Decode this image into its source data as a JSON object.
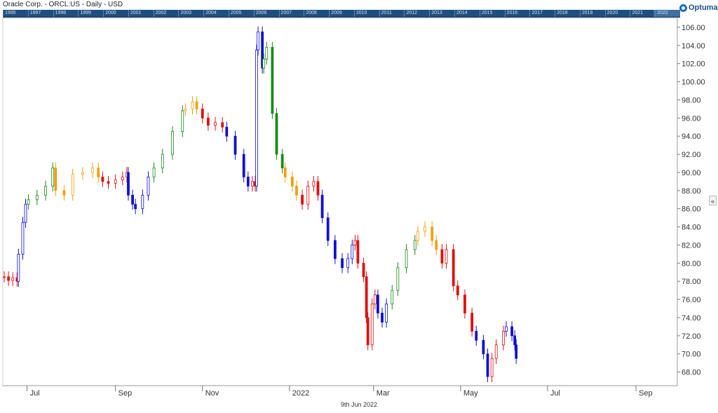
{
  "header": {
    "title": "Oracle Corp. - ORCL:US - Daily - USD",
    "logo_text": "Optuma",
    "overview_years": [
      "1995",
      "1997",
      "1998",
      "1999",
      "2000",
      "2001",
      "2002",
      "2003",
      "2004",
      "2005",
      "2006",
      "2007",
      "2008",
      "2009",
      "2010",
      "2011",
      "2012",
      "2013",
      "2014",
      "2015",
      "2016",
      "2017",
      "2018",
      "2019",
      "2020",
      "2021",
      "2022"
    ]
  },
  "footer": {
    "date_label": "9th Jun 2022"
  },
  "controls": {
    "collapse_label": "«"
  },
  "colors": {
    "up_trend": "#1a8a1a",
    "down_trend": "#e01010",
    "consolidation_up": "#f0a010",
    "consolidation_down": "#1010d0",
    "strip": "#1f4f7e",
    "grid": "#e6e6e6"
  },
  "chart_data": {
    "type": "candlestick",
    "title": "Oracle Corp. - ORCL:US - Daily - USD",
    "xlabel": "",
    "ylabel": "",
    "y_ticks": [
      "68.00",
      "70.00",
      "72.00",
      "74.00",
      "76.00",
      "78.00",
      "80.00",
      "82.00",
      "84.00",
      "86.00",
      "88.00",
      "90.00",
      "92.00",
      "94.00",
      "96.00",
      "98.00",
      "100.00",
      "102.00",
      "104.00",
      "106.00"
    ],
    "ylim": [
      66.5,
      107
    ],
    "x_month_labels": [
      {
        "label": "Jul",
        "date": "2021-07-01"
      },
      {
        "label": "Sep",
        "date": "2021-09-01"
      },
      {
        "label": "Nov",
        "date": "2021-11-01"
      },
      {
        "label": "2022",
        "date": "2022-01-01"
      },
      {
        "label": "Mar",
        "date": "2022-03-01"
      },
      {
        "label": "May",
        "date": "2022-05-01"
      },
      {
        "label": "Jul",
        "date": "2022-07-01"
      },
      {
        "label": "Sep",
        "date": "2022-09-01"
      }
    ],
    "xlim": [
      "2021-06-14",
      "2022-09-30"
    ],
    "series": [
      {
        "color": "red",
        "points": [
          {
            "date": "2021-06-15",
            "close": 78.5
          },
          {
            "date": "2021-06-18",
            "close": 78.1
          },
          {
            "date": "2021-06-21",
            "close": 78.4
          },
          {
            "date": "2021-06-24",
            "close": 78.0
          }
        ]
      },
      {
        "color": "blue",
        "points": [
          {
            "date": "2021-06-25",
            "close": 81.0
          },
          {
            "date": "2021-06-28",
            "close": 84.5
          },
          {
            "date": "2021-06-30",
            "close": 86.5
          }
        ]
      },
      {
        "color": "green",
        "points": [
          {
            "date": "2021-07-02",
            "close": 87.0
          },
          {
            "date": "2021-07-08",
            "close": 87.5
          },
          {
            "date": "2021-07-14",
            "close": 88.5
          },
          {
            "date": "2021-07-19",
            "close": 90.5
          }
        ]
      },
      {
        "color": "orange",
        "points": [
          {
            "date": "2021-07-21",
            "close": 88.0
          },
          {
            "date": "2021-07-27",
            "close": 87.5
          },
          {
            "date": "2021-08-02",
            "close": 89.8
          },
          {
            "date": "2021-08-09",
            "close": 90.0
          },
          {
            "date": "2021-08-16",
            "close": 90.5
          },
          {
            "date": "2021-08-20",
            "close": 89.5
          }
        ]
      },
      {
        "color": "red",
        "points": [
          {
            "date": "2021-08-23",
            "close": 89.0
          },
          {
            "date": "2021-08-27",
            "close": 88.8
          },
          {
            "date": "2021-09-01",
            "close": 89.2
          },
          {
            "date": "2021-09-06",
            "close": 89.5
          },
          {
            "date": "2021-09-09",
            "close": 90.0
          }
        ]
      },
      {
        "color": "blue",
        "points": [
          {
            "date": "2021-09-10",
            "close": 87.5
          },
          {
            "date": "2021-09-13",
            "close": 86.5
          },
          {
            "date": "2021-09-15",
            "close": 86.0
          },
          {
            "date": "2021-09-20",
            "close": 87.5
          },
          {
            "date": "2021-09-24",
            "close": 89.5
          }
        ]
      },
      {
        "color": "green",
        "points": [
          {
            "date": "2021-09-28",
            "close": 90.5
          },
          {
            "date": "2021-10-04",
            "close": 92.0
          },
          {
            "date": "2021-10-11",
            "close": 94.5
          },
          {
            "date": "2021-10-18",
            "close": 96.8
          }
        ]
      },
      {
        "color": "orange",
        "points": [
          {
            "date": "2021-10-20",
            "close": 97.0
          },
          {
            "date": "2021-10-25",
            "close": 97.8
          },
          {
            "date": "2021-10-28",
            "close": 97.0
          }
        ]
      },
      {
        "color": "red",
        "points": [
          {
            "date": "2021-11-01",
            "close": 96.0
          },
          {
            "date": "2021-11-05",
            "close": 95.2
          },
          {
            "date": "2021-11-10",
            "close": 95.5
          },
          {
            "date": "2021-11-15",
            "close": 95.0
          }
        ]
      },
      {
        "color": "blue",
        "points": [
          {
            "date": "2021-11-18",
            "close": 94.0
          },
          {
            "date": "2021-11-24",
            "close": 92.0
          },
          {
            "date": "2021-11-30",
            "close": 89.5
          },
          {
            "date": "2021-12-03",
            "close": 88.5
          }
        ]
      },
      {
        "color": "red",
        "points": [
          {
            "date": "2021-12-06",
            "close": 89.0
          },
          {
            "date": "2021-12-08",
            "close": 88.5
          }
        ]
      },
      {
        "color": "blue",
        "points": [
          {
            "date": "2021-12-09",
            "close": 103.5
          },
          {
            "date": "2021-12-10",
            "close": 105.5
          },
          {
            "date": "2021-12-13",
            "close": 101.5
          }
        ]
      },
      {
        "color": "green",
        "points": [
          {
            "date": "2021-12-14",
            "close": 102.5
          },
          {
            "date": "2021-12-16",
            "close": 103.8
          },
          {
            "date": "2021-12-20",
            "close": 96.5
          },
          {
            "date": "2021-12-23",
            "close": 92.0
          },
          {
            "date": "2021-12-27",
            "close": 90.5
          }
        ]
      },
      {
        "color": "orange",
        "points": [
          {
            "date": "2021-12-29",
            "close": 89.5
          },
          {
            "date": "2022-01-03",
            "close": 88.5
          },
          {
            "date": "2022-01-06",
            "close": 87.5
          }
        ]
      },
      {
        "color": "red",
        "points": [
          {
            "date": "2022-01-10",
            "close": 86.5
          },
          {
            "date": "2022-01-14",
            "close": 88.5
          },
          {
            "date": "2022-01-18",
            "close": 89.0
          },
          {
            "date": "2022-01-21",
            "close": 87.5
          }
        ]
      },
      {
        "color": "blue",
        "points": [
          {
            "date": "2022-01-24",
            "close": 85.0
          },
          {
            "date": "2022-01-28",
            "close": 82.5
          },
          {
            "date": "2022-02-02",
            "close": 80.5
          },
          {
            "date": "2022-02-07",
            "close": 79.5
          },
          {
            "date": "2022-02-11",
            "close": 80.5
          },
          {
            "date": "2022-02-14",
            "close": 82.0
          }
        ]
      },
      {
        "color": "red",
        "points": [
          {
            "date": "2022-02-16",
            "close": 82.5
          },
          {
            "date": "2022-02-18",
            "close": 80.0
          },
          {
            "date": "2022-02-22",
            "close": 78.5
          },
          {
            "date": "2022-02-24",
            "close": 74.0
          },
          {
            "date": "2022-02-25",
            "close": 71.0
          },
          {
            "date": "2022-02-28",
            "close": 75.5
          },
          {
            "date": "2022-03-02",
            "close": 76.5
          }
        ]
      },
      {
        "color": "blue",
        "points": [
          {
            "date": "2022-03-04",
            "close": 74.5
          },
          {
            "date": "2022-03-07",
            "close": 73.5
          },
          {
            "date": "2022-03-10",
            "close": 75.5
          }
        ]
      },
      {
        "color": "green",
        "points": [
          {
            "date": "2022-03-14",
            "close": 77.0
          },
          {
            "date": "2022-03-18",
            "close": 79.5
          },
          {
            "date": "2022-03-24",
            "close": 81.5
          },
          {
            "date": "2022-03-30",
            "close": 82.5
          }
        ]
      },
      {
        "color": "orange",
        "points": [
          {
            "date": "2022-04-01",
            "close": 83.5
          },
          {
            "date": "2022-04-06",
            "close": 84.0
          },
          {
            "date": "2022-04-11",
            "close": 82.5
          },
          {
            "date": "2022-04-14",
            "close": 81.5
          }
        ]
      },
      {
        "color": "red",
        "points": [
          {
            "date": "2022-04-18",
            "close": 80.0
          },
          {
            "date": "2022-04-21",
            "close": 81.5
          },
          {
            "date": "2022-04-26",
            "close": 77.5
          },
          {
            "date": "2022-04-29",
            "close": 76.5
          },
          {
            "date": "2022-05-04",
            "close": 74.5
          },
          {
            "date": "2022-05-09",
            "close": 72.5
          }
        ]
      },
      {
        "color": "blue",
        "points": [
          {
            "date": "2022-05-12",
            "close": 71.5
          },
          {
            "date": "2022-05-17",
            "close": 70.0
          },
          {
            "date": "2022-05-20",
            "close": 67.5
          }
        ]
      },
      {
        "color": "red",
        "points": [
          {
            "date": "2022-05-23",
            "close": 69.5
          },
          {
            "date": "2022-05-26",
            "close": 71.0
          },
          {
            "date": "2022-05-31",
            "close": 72.5
          }
        ]
      },
      {
        "color": "blue",
        "points": [
          {
            "date": "2022-06-02",
            "close": 73.0
          },
          {
            "date": "2022-06-06",
            "close": 72.0
          },
          {
            "date": "2022-06-08",
            "close": 71.0
          },
          {
            "date": "2022-06-09",
            "close": 69.5
          }
        ]
      }
    ]
  }
}
